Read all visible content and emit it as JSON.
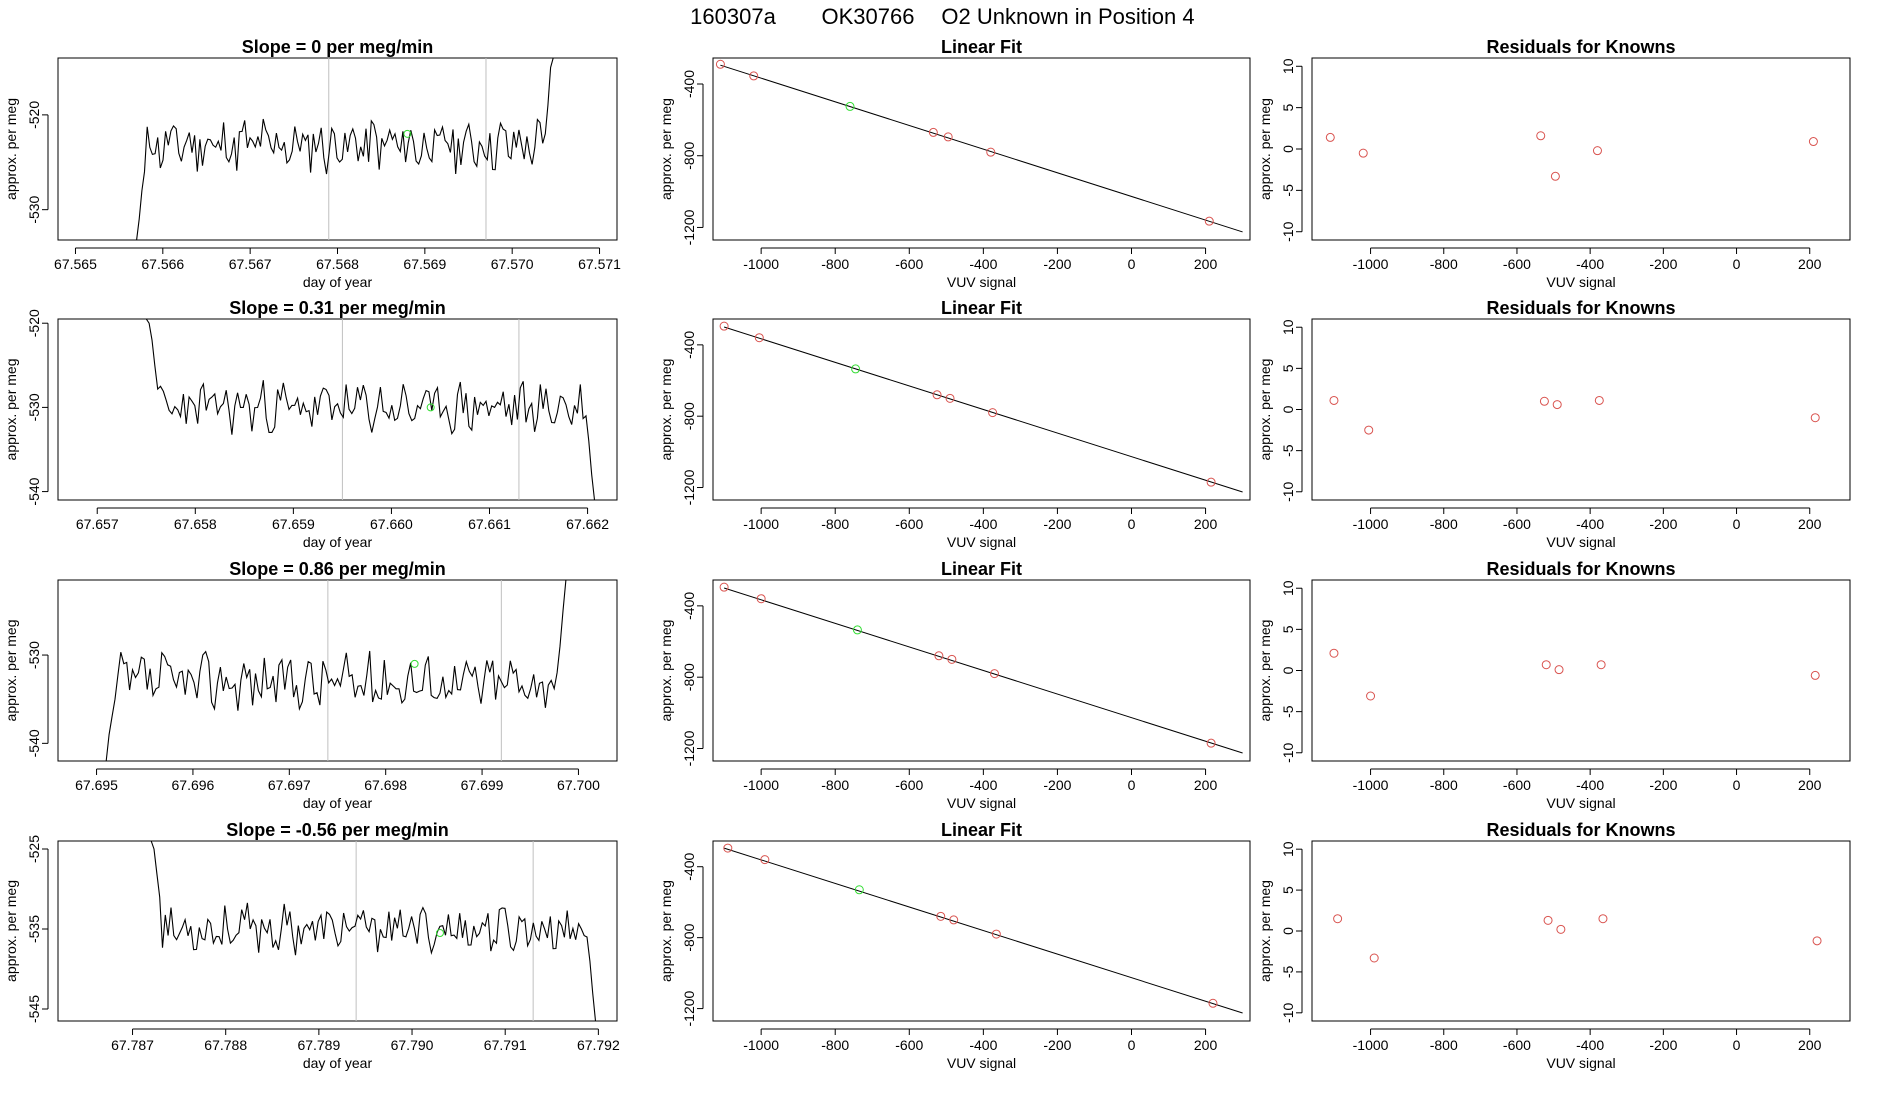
{
  "title": {
    "date": "160307a",
    "tank": "OK30766",
    "description": "O2 Unknown in Position  4"
  },
  "colors": {
    "trace": "#000000",
    "known_point": "#d9534f",
    "unknown_point": "#33dd33",
    "fit_line": "#000000",
    "marker_line": "#c0c0c0",
    "axis": "#000000"
  },
  "chart_data": [
    {
      "type": "line",
      "panel": "time-series",
      "row": 1,
      "title": "Slope =  0  per meg/min",
      "xlabel": "day of year",
      "ylabel": "approx. per meg",
      "xlim": [
        67.5648,
        67.5712
      ],
      "ylim": [
        -533.2,
        -514.0
      ],
      "x_ticks": [
        "67.565",
        "67.566",
        "67.567",
        "67.568",
        "67.569",
        "67.570",
        "67.571"
      ],
      "x_tick_values": [
        67.565,
        67.566,
        67.567,
        67.568,
        67.569,
        67.57,
        67.571
      ],
      "y_ticks": [
        "-530",
        "-520"
      ],
      "y_tick_values": [
        -530,
        -520
      ],
      "markers": [
        67.5679,
        67.5697
      ],
      "trace": {
        "start": 67.5657,
        "end": 67.5705,
        "base": -523.2,
        "amp": 2.4,
        "seed": 11,
        "head": [
          -534,
          -531,
          -528,
          -526
        ],
        "tail": [
          -523,
          -522,
          -519,
          -515,
          -510
        ]
      },
      "unknown_points": [
        {
          "x": 67.5688,
          "y": -522
        }
      ]
    },
    {
      "type": "scatter",
      "panel": "linear-fit",
      "row": 1,
      "title": "Linear Fit",
      "xlabel": "VUV signal",
      "ylabel": "approx. per meg",
      "xlim": [
        -1130,
        320
      ],
      "ylim": [
        -1270,
        -255
      ],
      "x_ticks": [
        "-1000",
        "-800",
        "-600",
        "-400",
        "-200",
        "0",
        "200"
      ],
      "x_tick_values": [
        -1000,
        -800,
        -600,
        -400,
        -200,
        0,
        200
      ],
      "y_ticks": [
        "-400",
        "-800",
        "-1200"
      ],
      "y_tick_values": [
        -400,
        -800,
        -1200
      ],
      "fit_line": {
        "x1": -1110,
        "y1": -295,
        "x2": 300,
        "y2": -1225
      },
      "known_points": [
        {
          "x": -1110,
          "y": -290
        },
        {
          "x": -1020,
          "y": -355
        },
        {
          "x": -535,
          "y": -670
        },
        {
          "x": -495,
          "y": -695
        },
        {
          "x": -380,
          "y": -780
        },
        {
          "x": 210,
          "y": -1165
        }
      ],
      "unknown_points": [
        {
          "x": -760,
          "y": -525
        }
      ]
    },
    {
      "type": "scatter",
      "panel": "residuals",
      "row": 1,
      "title": "Residuals for Knowns",
      "xlabel": "VUV signal",
      "ylabel": "approx. per meg",
      "xlim": [
        -1160,
        310
      ],
      "ylim": [
        -11,
        11
      ],
      "x_ticks": [
        "-1000",
        "-800",
        "-600",
        "-400",
        "-200",
        "0",
        "200"
      ],
      "x_tick_values": [
        -1000,
        -800,
        -600,
        -400,
        -200,
        0,
        200
      ],
      "y_ticks": [
        "-10",
        "-5",
        "0",
        "5",
        "10"
      ],
      "y_tick_values": [
        -10,
        -5,
        0,
        5,
        10
      ],
      "known_points": [
        {
          "x": -1110,
          "y": 1.4
        },
        {
          "x": -1020,
          "y": -0.5
        },
        {
          "x": -535,
          "y": 1.6
        },
        {
          "x": -495,
          "y": -3.3
        },
        {
          "x": -380,
          "y": -0.2
        },
        {
          "x": 210,
          "y": 0.9
        }
      ]
    },
    {
      "type": "line",
      "panel": "time-series",
      "row": 2,
      "title": "Slope =  0.31  per meg/min",
      "xlabel": "day of year",
      "ylabel": "approx. per meg",
      "xlim": [
        67.6566,
        67.6623
      ],
      "ylim": [
        -541.0,
        -519.5
      ],
      "x_ticks": [
        "67.657",
        "67.658",
        "67.659",
        "67.660",
        "67.661",
        "67.662"
      ],
      "x_tick_values": [
        67.657,
        67.658,
        67.659,
        67.66,
        67.661,
        67.662
      ],
      "y_ticks": [
        "-540",
        "-530",
        "-520"
      ],
      "y_tick_values": [
        -540,
        -530,
        -520
      ],
      "markers": [
        67.6595,
        67.6613
      ],
      "trace": {
        "start": 67.6575,
        "end": 67.6621,
        "base": -530.0,
        "amp": 2.5,
        "seed": 23,
        "head": [
          -519,
          -520,
          -522,
          -525
        ],
        "tail": [
          -531,
          -534,
          -538,
          -541
        ]
      },
      "unknown_points": [
        {
          "x": 67.6604,
          "y": -530
        }
      ]
    },
    {
      "type": "scatter",
      "panel": "linear-fit",
      "row": 2,
      "title": "Linear Fit",
      "xlabel": "VUV signal",
      "ylabel": "approx. per meg",
      "xlim": [
        -1130,
        320
      ],
      "ylim": [
        -1270,
        -255
      ],
      "x_ticks": [
        "-1000",
        "-800",
        "-600",
        "-400",
        "-200",
        "0",
        "200"
      ],
      "x_tick_values": [
        -1000,
        -800,
        -600,
        -400,
        -200,
        0,
        200
      ],
      "y_ticks": [
        "-400",
        "-800",
        "-1200"
      ],
      "y_tick_values": [
        -400,
        -800,
        -1200
      ],
      "fit_line": {
        "x1": -1100,
        "y1": -300,
        "x2": 300,
        "y2": -1225
      },
      "known_points": [
        {
          "x": -1100,
          "y": -295
        },
        {
          "x": -1005,
          "y": -360
        },
        {
          "x": -525,
          "y": -680
        },
        {
          "x": -490,
          "y": -700
        },
        {
          "x": -375,
          "y": -780
        },
        {
          "x": 215,
          "y": -1170
        }
      ],
      "unknown_points": [
        {
          "x": -745,
          "y": -535
        }
      ]
    },
    {
      "type": "scatter",
      "panel": "residuals",
      "row": 2,
      "title": "Residuals for Knowns",
      "xlabel": "VUV signal",
      "ylabel": "approx. per meg",
      "xlim": [
        -1160,
        310
      ],
      "ylim": [
        -11,
        11
      ],
      "x_ticks": [
        "-1000",
        "-800",
        "-600",
        "-400",
        "-200",
        "0",
        "200"
      ],
      "x_tick_values": [
        -1000,
        -800,
        -600,
        -400,
        -200,
        0,
        200
      ],
      "y_ticks": [
        "-10",
        "-5",
        "0",
        "5",
        "10"
      ],
      "y_tick_values": [
        -10,
        -5,
        0,
        5,
        10
      ],
      "known_points": [
        {
          "x": -1100,
          "y": 1.1
        },
        {
          "x": -1005,
          "y": -2.5
        },
        {
          "x": -525,
          "y": 1.0
        },
        {
          "x": -490,
          "y": 0.6
        },
        {
          "x": -375,
          "y": 1.1
        },
        {
          "x": 215,
          "y": -1.0
        }
      ]
    },
    {
      "type": "line",
      "panel": "time-series",
      "row": 3,
      "title": "Slope =  0.86  per meg/min",
      "xlabel": "day of year",
      "ylabel": "approx. per meg",
      "xlim": [
        67.6946,
        67.7004
      ],
      "ylim": [
        -542.0,
        -521.5
      ],
      "x_ticks": [
        "67.695",
        "67.696",
        "67.697",
        "67.698",
        "67.699",
        "67.700"
      ],
      "x_tick_values": [
        67.695,
        67.696,
        67.697,
        67.698,
        67.699,
        67.7
      ],
      "y_ticks": [
        "-540",
        "-530"
      ],
      "y_tick_values": [
        -540,
        -530
      ],
      "markers": [
        67.6974,
        67.6992
      ],
      "trace": {
        "start": 67.6951,
        "end": 67.6999,
        "base": -533.0,
        "amp": 2.6,
        "seed": 37,
        "head": [
          -542,
          -539,
          -537,
          -535
        ],
        "tail": [
          -532,
          -529,
          -525,
          -521
        ]
      },
      "unknown_points": [
        {
          "x": 67.6983,
          "y": -531
        }
      ]
    },
    {
      "type": "scatter",
      "panel": "linear-fit",
      "row": 3,
      "title": "Linear Fit",
      "xlabel": "VUV signal",
      "ylabel": "approx. per meg",
      "xlim": [
        -1130,
        320
      ],
      "ylim": [
        -1270,
        -255
      ],
      "x_ticks": [
        "-1000",
        "-800",
        "-600",
        "-400",
        "-200",
        "0",
        "200"
      ],
      "x_tick_values": [
        -1000,
        -800,
        -600,
        -400,
        -200,
        0,
        200
      ],
      "y_ticks": [
        "-400",
        "-800",
        "-1200"
      ],
      "y_tick_values": [
        -400,
        -800,
        -1200
      ],
      "fit_line": {
        "x1": -1100,
        "y1": -300,
        "x2": 300,
        "y2": -1225
      },
      "known_points": [
        {
          "x": -1100,
          "y": -295
        },
        {
          "x": -1000,
          "y": -360
        },
        {
          "x": -520,
          "y": -680
        },
        {
          "x": -485,
          "y": -700
        },
        {
          "x": -370,
          "y": -780
        },
        {
          "x": 215,
          "y": -1170
        }
      ],
      "unknown_points": [
        {
          "x": -740,
          "y": -535
        }
      ]
    },
    {
      "type": "scatter",
      "panel": "residuals",
      "row": 3,
      "title": "Residuals for Knowns",
      "xlabel": "VUV signal",
      "ylabel": "approx. per meg",
      "xlim": [
        -1160,
        310
      ],
      "ylim": [
        -11,
        11
      ],
      "x_ticks": [
        "-1000",
        "-800",
        "-600",
        "-400",
        "-200",
        "0",
        "200"
      ],
      "x_tick_values": [
        -1000,
        -800,
        -600,
        -400,
        -200,
        0,
        200
      ],
      "y_ticks": [
        "-10",
        "-5",
        "0",
        "5",
        "10"
      ],
      "y_tick_values": [
        -10,
        -5,
        0,
        5,
        10
      ],
      "known_points": [
        {
          "x": -1100,
          "y": 2.1
        },
        {
          "x": -1000,
          "y": -3.1
        },
        {
          "x": -520,
          "y": 0.7
        },
        {
          "x": -485,
          "y": 0.1
        },
        {
          "x": -370,
          "y": 0.7
        },
        {
          "x": 215,
          "y": -0.6
        }
      ]
    },
    {
      "type": "line",
      "panel": "time-series",
      "row": 4,
      "title": "Slope =  -0.56  per meg/min",
      "xlabel": "day of year",
      "ylabel": "approx. per meg",
      "xlim": [
        67.7862,
        67.7922
      ],
      "ylim": [
        -546.5,
        -524.0
      ],
      "x_ticks": [
        "67.787",
        "67.788",
        "67.789",
        "67.790",
        "67.791",
        "67.792"
      ],
      "x_tick_values": [
        67.787,
        67.788,
        67.789,
        67.79,
        67.791,
        67.792
      ],
      "y_ticks": [
        "-545",
        "-535",
        "-525"
      ],
      "y_tick_values": [
        -545,
        -535,
        -525
      ],
      "markers": [
        67.7894,
        67.7913
      ],
      "trace": {
        "start": 67.7872,
        "end": 67.792,
        "base": -535.0,
        "amp": 2.4,
        "seed": 53,
        "head": [
          -523,
          -525,
          -528,
          -531
        ],
        "tail": [
          -536,
          -539,
          -543,
          -547
        ]
      },
      "unknown_points": [
        {
          "x": 67.7903,
          "y": -535.5
        }
      ]
    },
    {
      "type": "scatter",
      "panel": "linear-fit",
      "row": 4,
      "title": "Linear Fit",
      "xlabel": "VUV signal",
      "ylabel": "approx. per meg",
      "xlim": [
        -1130,
        320
      ],
      "ylim": [
        -1270,
        -255
      ],
      "x_ticks": [
        "-1000",
        "-800",
        "-600",
        "-400",
        "-200",
        "0",
        "200"
      ],
      "x_tick_values": [
        -1000,
        -800,
        -600,
        -400,
        -200,
        0,
        200
      ],
      "y_ticks": [
        "-400",
        "-800",
        "-1200"
      ],
      "y_tick_values": [
        -400,
        -800,
        -1200
      ],
      "fit_line": {
        "x1": -1100,
        "y1": -295,
        "x2": 300,
        "y2": -1225
      },
      "known_points": [
        {
          "x": -1090,
          "y": -295
        },
        {
          "x": -990,
          "y": -360
        },
        {
          "x": -515,
          "y": -680
        },
        {
          "x": -480,
          "y": -700
        },
        {
          "x": -365,
          "y": -780
        },
        {
          "x": 220,
          "y": -1170
        }
      ],
      "unknown_points": [
        {
          "x": -735,
          "y": -530
        }
      ]
    },
    {
      "type": "scatter",
      "panel": "residuals",
      "row": 4,
      "title": "Residuals for Knowns",
      "xlabel": "VUV signal",
      "ylabel": "approx. per meg",
      "xlim": [
        -1160,
        310
      ],
      "ylim": [
        -11,
        11
      ],
      "x_ticks": [
        "-1000",
        "-800",
        "-600",
        "-400",
        "-200",
        "0",
        "200"
      ],
      "x_tick_values": [
        -1000,
        -800,
        -600,
        -400,
        -200,
        0,
        200
      ],
      "y_ticks": [
        "-10",
        "-5",
        "0",
        "5",
        "10"
      ],
      "y_tick_values": [
        -10,
        -5,
        0,
        5,
        10
      ],
      "known_points": [
        {
          "x": -1090,
          "y": 1.5
        },
        {
          "x": -990,
          "y": -3.3
        },
        {
          "x": -515,
          "y": 1.3
        },
        {
          "x": -480,
          "y": 0.2
        },
        {
          "x": -365,
          "y": 1.5
        },
        {
          "x": 220,
          "y": -1.2
        }
      ]
    }
  ]
}
